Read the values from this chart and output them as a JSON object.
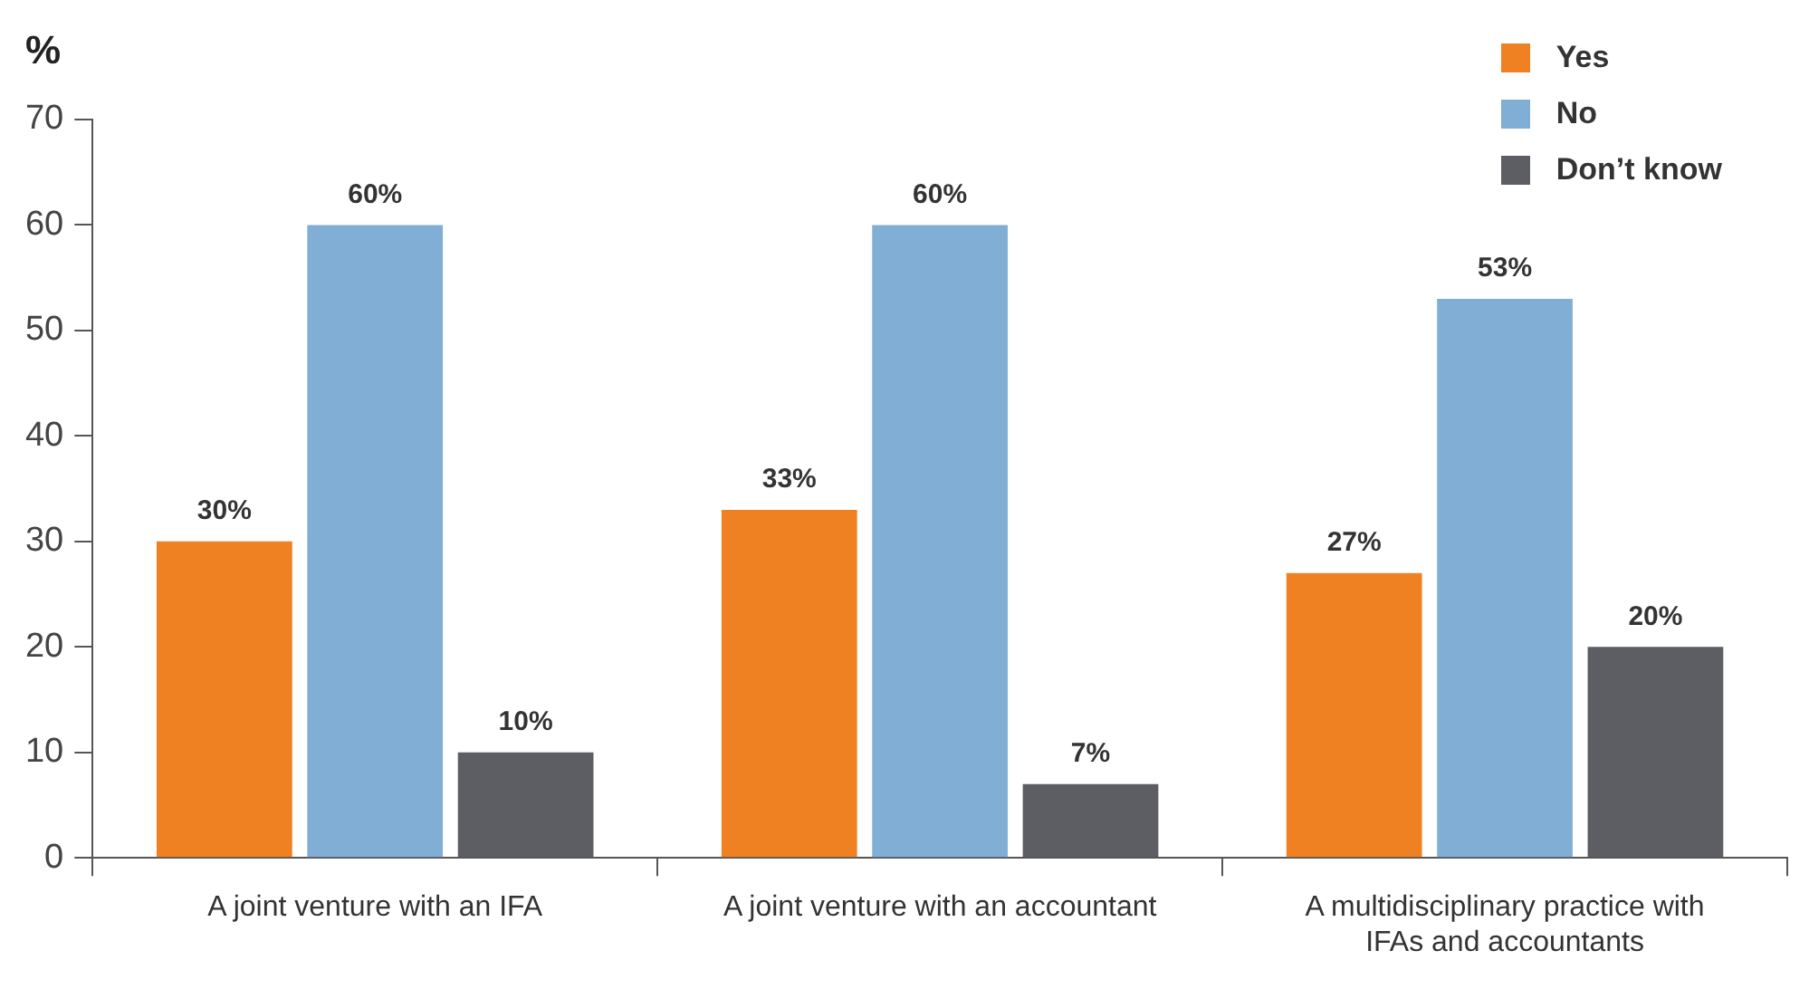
{
  "chart_data": {
    "type": "bar",
    "ylabel": "%",
    "categories": [
      "A joint venture with an IFA",
      "A joint venture with an accountant",
      "A multidisciplinary practice with IFAs and accountants"
    ],
    "series": [
      {
        "name": "Yes",
        "color": "#f08122",
        "values": [
          30,
          33,
          27
        ],
        "value_labels": [
          "30%",
          "33%",
          "27%"
        ]
      },
      {
        "name": "No",
        "color": "#80aed4",
        "values": [
          60,
          60,
          53
        ],
        "value_labels": [
          "60%",
          "60%",
          "53%"
        ]
      },
      {
        "name": "Don’t know",
        "color": "#5c5e63",
        "values": [
          10,
          7,
          20
        ],
        "value_labels": [
          "10%",
          "7%",
          "20%"
        ]
      }
    ],
    "ylim": [
      0,
      70
    ],
    "yticks": [
      0,
      10,
      20,
      30,
      40,
      50,
      60,
      70
    ],
    "grid": false,
    "legend": "top right"
  }
}
